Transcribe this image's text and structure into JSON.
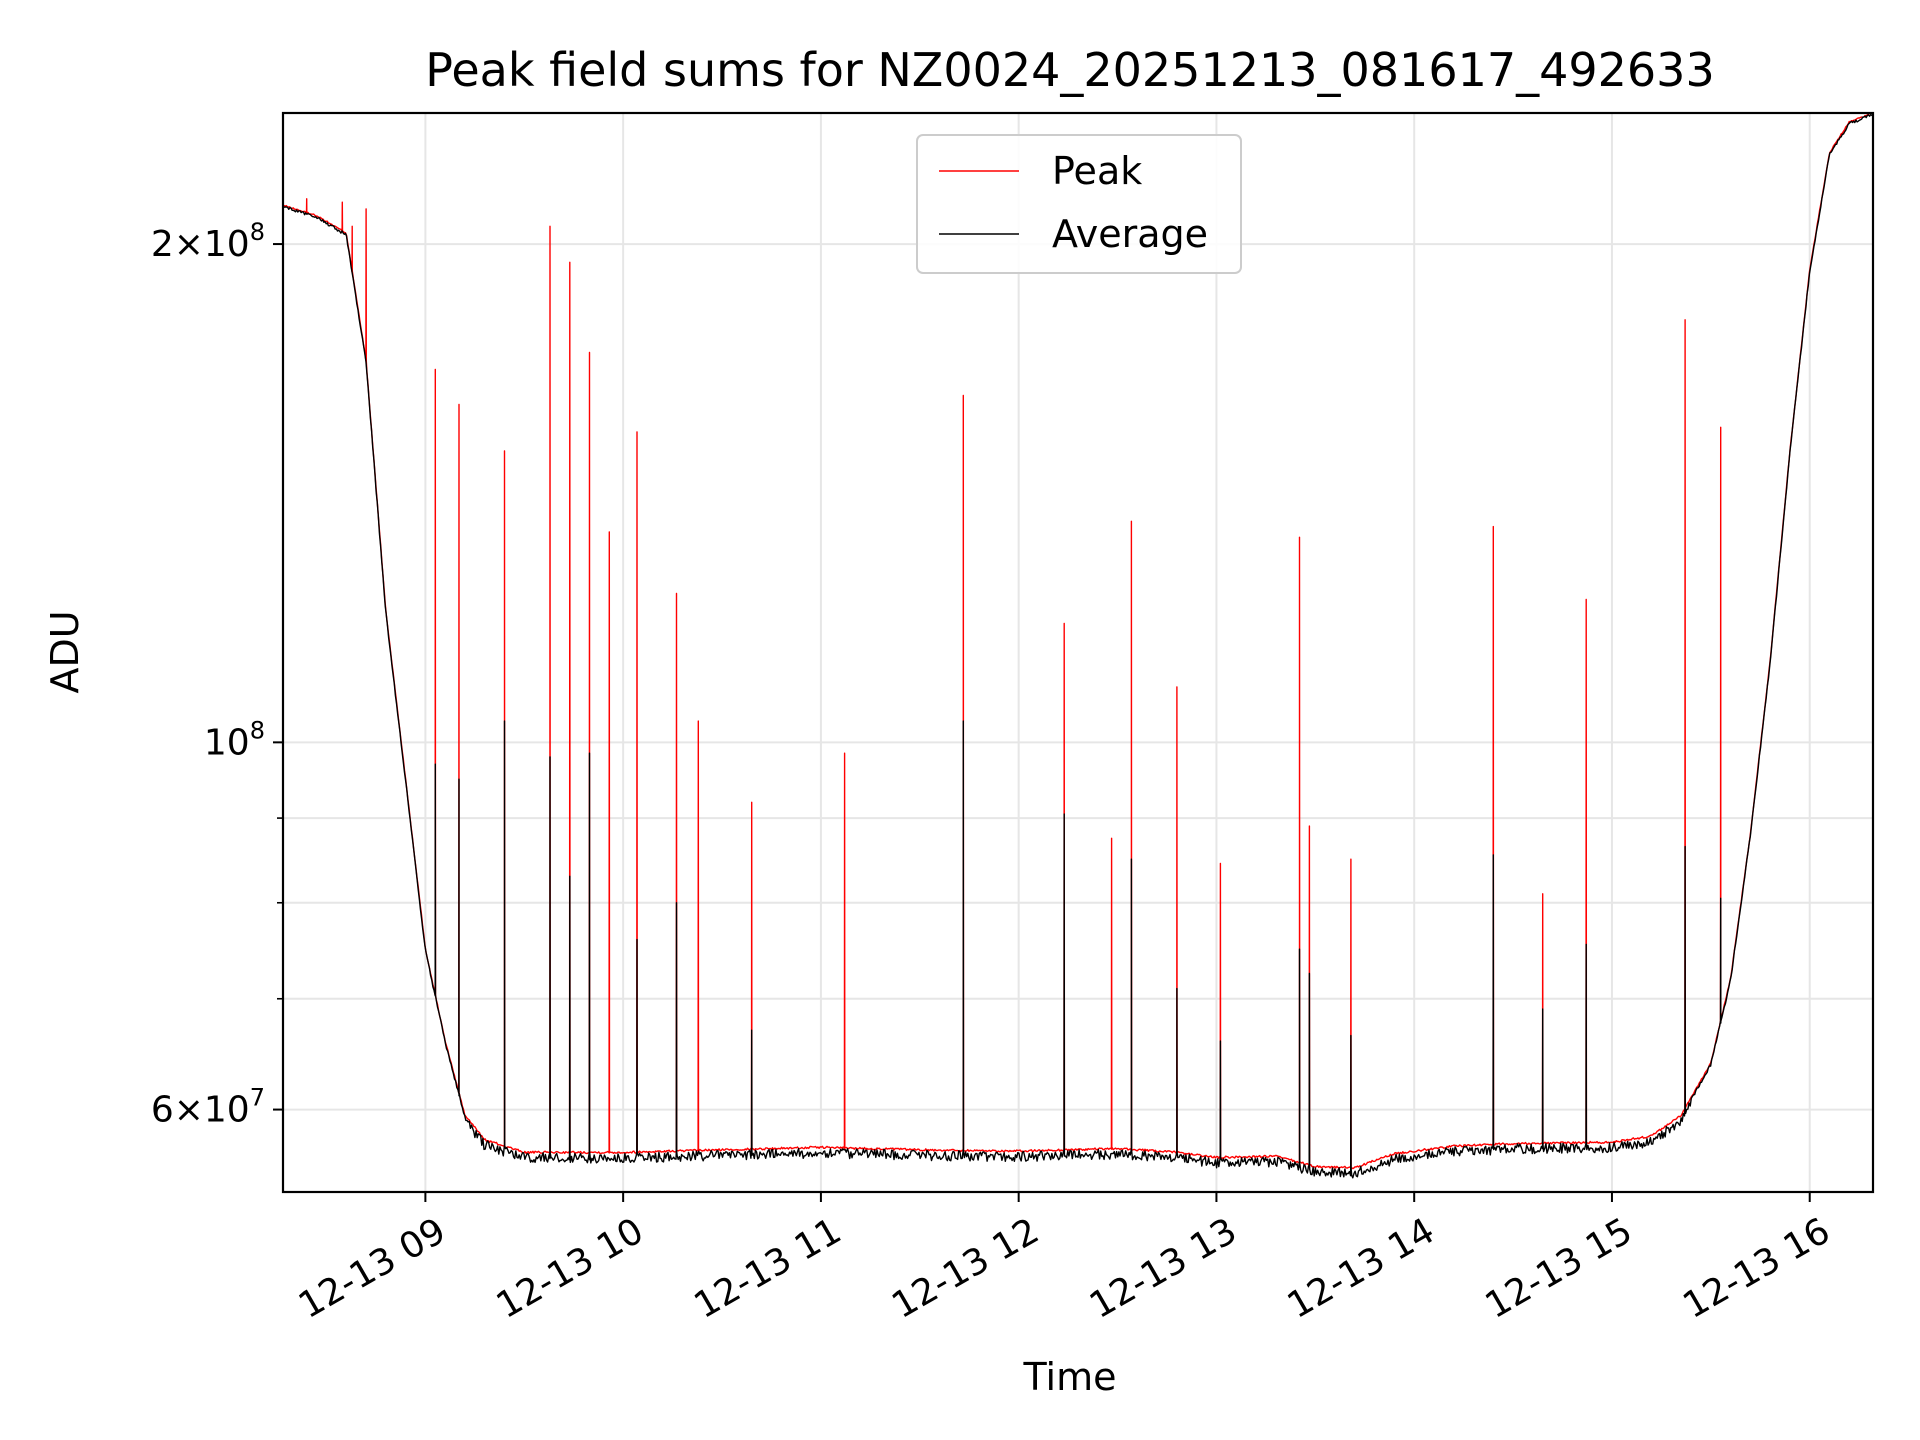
{
  "chart_data": {
    "type": "line",
    "title": "Peak field sums for NZ0024_20251213_081617_492633",
    "xlabel": "Time",
    "ylabel": "ADU",
    "yscale": "log",
    "xlim_hours": [
      8.28,
      16.32
    ],
    "ylim": [
      53500000,
      240000000
    ],
    "x_ticks": [
      {
        "value": 9,
        "label": "12-13 09"
      },
      {
        "value": 10,
        "label": "12-13 10"
      },
      {
        "value": 11,
        "label": "12-13 11"
      },
      {
        "value": 12,
        "label": "12-13 12"
      },
      {
        "value": 13,
        "label": "12-13 13"
      },
      {
        "value": 14,
        "label": "12-13 14"
      },
      {
        "value": 15,
        "label": "12-13 15"
      },
      {
        "value": 16,
        "label": "12-13 16"
      }
    ],
    "y_ticks": [
      {
        "value": 60000000,
        "mantissa": "6",
        "exp": "7"
      },
      {
        "value": 100000000,
        "mantissa": "",
        "exp": "8"
      },
      {
        "value": 200000000,
        "mantissa": "2",
        "exp": "8"
      }
    ],
    "y_minor_ticks": [
      70000000,
      80000000,
      90000000
    ],
    "legend": {
      "location": "upper center",
      "entries": [
        {
          "label": "Peak",
          "color": "#ff0000"
        },
        {
          "label": "Average",
          "color": "#000000"
        }
      ]
    },
    "grid": true,
    "baseline_hours": [
      8.28,
      8.45,
      8.6,
      8.7,
      8.8,
      8.9,
      9.0,
      9.1,
      9.2,
      9.3,
      9.5,
      10.0,
      10.5,
      11.0,
      11.5,
      12.0,
      12.5,
      12.8,
      13.0,
      13.3,
      13.5,
      13.7,
      13.9,
      14.2,
      14.5,
      15.0,
      15.2,
      15.35,
      15.5,
      15.6,
      15.7,
      15.8,
      15.9,
      16.0,
      16.1,
      16.2,
      16.32
    ],
    "baseline_values": [
      211000000,
      208000000,
      203000000,
      170000000,
      120000000,
      95000000,
      75000000,
      66000000,
      59500000,
      57500000,
      56500000,
      56500000,
      56700000,
      56900000,
      56700000,
      56600000,
      56800000,
      56500000,
      56100000,
      56200000,
      55400000,
      55300000,
      56400000,
      57000000,
      57200000,
      57300000,
      57800000,
      59500000,
      64000000,
      72000000,
      88000000,
      112000000,
      150000000,
      193000000,
      227000000,
      237000000,
      240000000
    ],
    "series": [
      {
        "name": "Peak",
        "color": "#ff0000",
        "spike_hours": [
          8.4,
          8.58,
          8.63,
          8.7,
          9.05,
          9.17,
          9.4,
          9.63,
          9.73,
          9.83,
          9.93,
          10.07,
          10.27,
          10.38,
          10.65,
          11.12,
          11.72,
          12.23,
          12.47,
          12.57,
          12.8,
          13.02,
          13.42,
          13.47,
          13.68,
          14.4,
          14.65,
          14.87,
          15.37,
          15.55
        ],
        "spike_values": [
          213000000,
          212000000,
          205000000,
          210000000,
          168000000,
          160000000,
          150000000,
          205000000,
          195000000,
          172000000,
          134000000,
          154000000,
          123000000,
          103000000,
          92000000,
          98500000,
          162000000,
          118000000,
          87500000,
          136000000,
          108000000,
          84500000,
          133000000,
          89000000,
          85000000,
          135000000,
          81000000,
          122000000,
          180000000,
          155000000
        ]
      },
      {
        "name": "Average",
        "color": "#000000",
        "spike_hours": [
          9.05,
          9.17,
          9.4,
          9.63,
          9.73,
          9.83,
          10.07,
          10.27,
          10.65,
          11.72,
          12.23,
          12.57,
          12.8,
          13.02,
          13.42,
          13.47,
          13.68,
          14.4,
          14.65,
          14.87,
          15.37,
          15.55
        ],
        "spike_values": [
          97000000,
          95000000,
          103000000,
          98000000,
          83000000,
          98500000,
          76000000,
          80000000,
          67000000,
          103000000,
          90500000,
          85000000,
          71000000,
          66000000,
          75000000,
          72500000,
          66500000,
          85500000,
          69000000,
          75500000,
          86500000,
          80500000
        ]
      }
    ]
  }
}
